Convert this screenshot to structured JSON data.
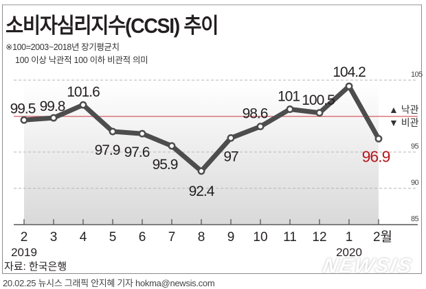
{
  "header": {
    "title": "소비자심리지수(CCSI) 추이",
    "note_line1": "※100=2003~2018년 장기평균치",
    "note_line2": "100 이상 낙관적 100 이하 비관적 의미"
  },
  "legend": {
    "optimistic": "▲ 낙관",
    "pessimistic": "▼ 비관"
  },
  "colors": {
    "line": "#4d4d4d",
    "baseline_100": "#d35a5f",
    "last_value": "#b5191f",
    "gridline": "#b3b3b3"
  },
  "source": "자료: 한국은행",
  "footer": "20.02.25 뉴시스 그래픽 안지혜 기자 hokma@newsis.com",
  "watermark": "NEWSIS",
  "chart_data": {
    "type": "line",
    "title": "소비자심리지수(CCSI) 추이",
    "subtitle": "※100=2003~2018년 장기평균치 / 100 이상 낙관적 100 이하 비관적 의미",
    "categories": [
      "2",
      "3",
      "4",
      "5",
      "6",
      "7",
      "8",
      "9",
      "10",
      "11",
      "12",
      "1",
      "2월"
    ],
    "year_labels": [
      {
        "index": 0,
        "label": "2019"
      },
      {
        "index": 11,
        "label": "2020"
      }
    ],
    "series": [
      {
        "name": "CCSI",
        "values": [
          99.5,
          99.8,
          101.6,
          97.9,
          97.6,
          95.9,
          92.4,
          97,
          98.6,
          101,
          100.5,
          104.2,
          96.9
        ],
        "labels": [
          "99.5",
          "99.8",
          "101.6",
          "97.9",
          "97.6",
          "95.9",
          "92.4",
          "97",
          "98.6",
          "101",
          "100.5",
          "104.2",
          "96.9"
        ]
      }
    ],
    "yticks": [
      "105",
      "95",
      "90",
      "85"
    ],
    "ylim": [
      85,
      105
    ],
    "reference_line": 100,
    "xlabel": "",
    "ylabel": "",
    "grid": true,
    "legend_position": "right"
  }
}
